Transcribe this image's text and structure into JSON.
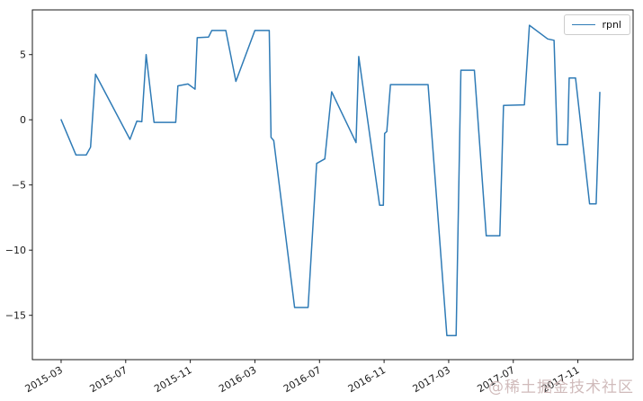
{
  "watermark": {
    "text": "@稀土掘金技术社区",
    "color": "#ccb4b4"
  },
  "colors": {
    "line": "#2f7bb6",
    "tick_text": "#1a1a1a",
    "spine": "#1a1a1a",
    "legend_border": "#cccccc",
    "background": "#ffffff"
  },
  "chart_data": {
    "type": "line",
    "title": "",
    "xlabel": "",
    "ylabel": "",
    "grid": false,
    "legend": [
      "rpnl"
    ],
    "legend_position": "upper right",
    "x_ticks": [
      {
        "label": "2015-03"
      },
      {
        "label": "2015-07"
      },
      {
        "label": "2015-11"
      },
      {
        "label": "2016-03"
      },
      {
        "label": "2016-07"
      },
      {
        "label": "2016-11"
      },
      {
        "label": "2017-03"
      },
      {
        "label": "2017-07"
      },
      {
        "label": "2017-11"
      }
    ],
    "y_ticks": [
      {
        "label": "5",
        "value": 5
      },
      {
        "label": "0",
        "value": 0
      },
      {
        "label": "−5",
        "value": -5
      },
      {
        "label": "−10",
        "value": -10
      },
      {
        "label": "−15",
        "value": -15
      }
    ],
    "xlim_months_from_2015_03": [
      -1.78,
      35.42
    ],
    "ylim": [
      -18.4,
      8.43
    ],
    "x_tick_rotation_deg": 30,
    "series": [
      {
        "name": "rpnl",
        "points": [
          [
            "2015-03-01",
            0.0
          ],
          [
            "2015-03-29",
            -2.7
          ],
          [
            "2015-04-18",
            -2.7
          ],
          [
            "2015-04-26",
            -2.1
          ],
          [
            "2015-05-05",
            3.5
          ],
          [
            "2015-07-09",
            -1.5
          ],
          [
            "2015-07-22",
            -0.1
          ],
          [
            "2015-08-01",
            -0.15
          ],
          [
            "2015-08-09",
            5.0
          ],
          [
            "2015-08-24",
            -0.2
          ],
          [
            "2015-10-04",
            -0.2
          ],
          [
            "2015-10-08",
            2.6
          ],
          [
            "2015-10-27",
            2.75
          ],
          [
            "2015-11-10",
            2.35
          ],
          [
            "2015-11-14",
            6.3
          ],
          [
            "2015-12-05",
            6.35
          ],
          [
            "2015-12-11",
            6.85
          ],
          [
            "2016-01-07",
            6.85
          ],
          [
            "2016-01-26",
            2.95
          ],
          [
            "2016-03-01",
            6.85
          ],
          [
            "2016-03-28",
            6.85
          ],
          [
            "2016-04-01",
            -1.35
          ],
          [
            "2016-04-06",
            -1.6
          ],
          [
            "2016-05-15",
            -14.4
          ],
          [
            "2016-06-10",
            -14.4
          ],
          [
            "2016-06-26",
            -3.35
          ],
          [
            "2016-07-11",
            -3.0
          ],
          [
            "2016-07-24",
            2.15
          ],
          [
            "2016-09-09",
            -1.75
          ],
          [
            "2016-09-14",
            4.85
          ],
          [
            "2016-10-23",
            -6.55
          ],
          [
            "2016-10-30",
            -6.55
          ],
          [
            "2016-11-02",
            -1.05
          ],
          [
            "2016-11-06",
            -0.9
          ],
          [
            "2016-11-13",
            2.7
          ],
          [
            "2017-01-23",
            2.7
          ],
          [
            "2017-02-28",
            -16.55
          ],
          [
            "2017-03-15",
            -16.55
          ],
          [
            "2017-03-24",
            3.8
          ],
          [
            "2017-04-19",
            3.8
          ],
          [
            "2017-05-11",
            -8.9
          ],
          [
            "2017-06-06",
            -8.9
          ],
          [
            "2017-06-13",
            1.1
          ],
          [
            "2017-07-22",
            1.15
          ],
          [
            "2017-08-01",
            7.25
          ],
          [
            "2017-09-05",
            6.2
          ],
          [
            "2017-09-17",
            6.1
          ],
          [
            "2017-09-23",
            -1.9
          ],
          [
            "2017-10-12",
            -1.9
          ],
          [
            "2017-10-15",
            3.2
          ],
          [
            "2017-10-27",
            3.2
          ],
          [
            "2017-11-23",
            -6.45
          ],
          [
            "2017-12-05",
            -6.45
          ],
          [
            "2017-12-12",
            2.1
          ]
        ]
      }
    ]
  }
}
